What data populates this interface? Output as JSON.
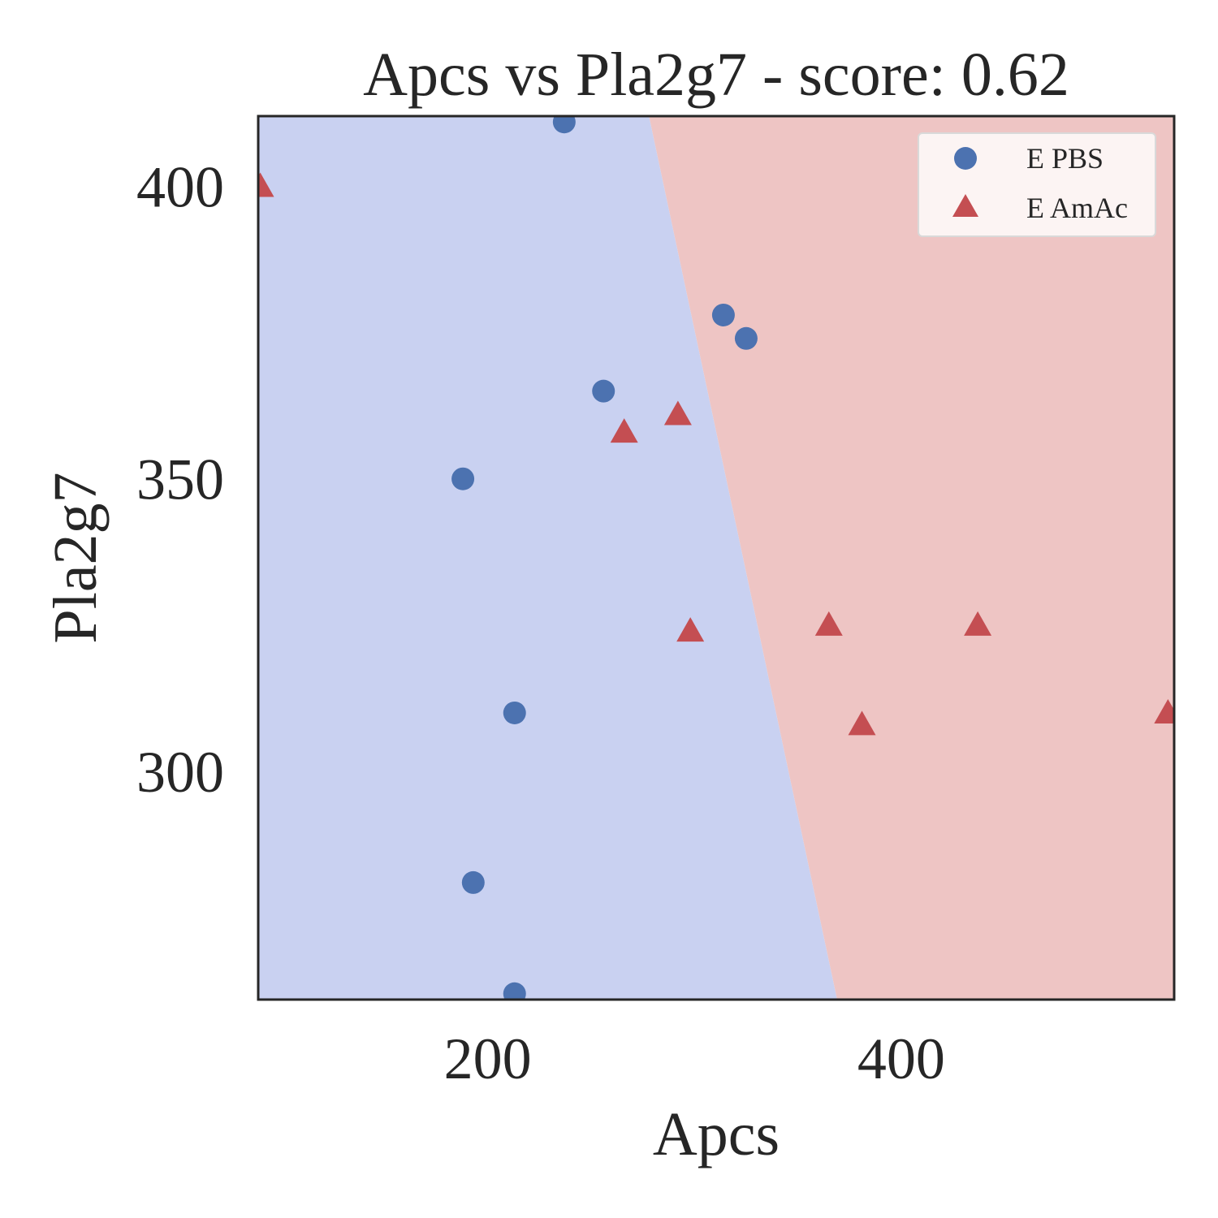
{
  "chart_data": {
    "type": "scatter",
    "title": "Apcs vs Pla2g7 - score: 0.62",
    "xlabel": "Apcs",
    "ylabel": "Pla2g7",
    "xlim": [
      89,
      532
    ],
    "ylim": [
      261,
      412
    ],
    "xticks": [
      200,
      400
    ],
    "yticks": [
      300,
      350,
      400
    ],
    "grid": false,
    "legend_position": "top-right",
    "background_regions": {
      "left_color": "#c9d1f1",
      "right_color": "#eec5c4",
      "boundary": [
        [
          278,
          412
        ],
        [
          369,
          261
        ]
      ]
    },
    "series": [
      {
        "name": "E PBS",
        "marker": "circle",
        "color": "#4c72b0",
        "points": [
          [
            237,
            411
          ],
          [
            314,
            378
          ],
          [
            325,
            374
          ],
          [
            256,
            365
          ],
          [
            188,
            350
          ],
          [
            213,
            310
          ],
          [
            193,
            281
          ],
          [
            213,
            262
          ]
        ]
      },
      {
        "name": "E AmAc",
        "marker": "triangle",
        "color": "#c44e52",
        "points": [
          [
            90,
            400
          ],
          [
            292,
            361
          ],
          [
            266,
            358
          ],
          [
            298,
            324
          ],
          [
            365,
            325
          ],
          [
            437,
            325
          ],
          [
            381,
            308
          ],
          [
            529,
            310
          ]
        ]
      }
    ]
  }
}
